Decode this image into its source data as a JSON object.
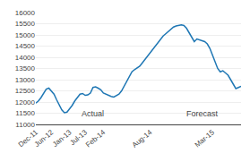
{
  "chart_data": {
    "type": "line",
    "categories": [
      "Dec-11",
      null,
      null,
      null,
      null,
      null,
      "Jun-12",
      null,
      null,
      null,
      null,
      null,
      null,
      "Jan-13",
      null,
      null,
      null,
      null,
      null,
      "Jul-13",
      null,
      null,
      null,
      null,
      null,
      null,
      "Feb-14",
      null,
      null,
      null,
      null,
      null,
      null,
      null,
      null,
      null,
      null,
      null,
      null,
      null,
      null,
      null,
      null,
      null,
      "Aug-14",
      null,
      null,
      null,
      null,
      null,
      null,
      null,
      null,
      null,
      null,
      null,
      null,
      null,
      null,
      null,
      null,
      null,
      null,
      null,
      null,
      null,
      null,
      null,
      "Mar-15",
      null,
      null,
      null,
      null,
      null,
      null,
      null,
      null,
      null,
      null,
      null
    ],
    "values": [
      11950,
      12050,
      12200,
      12400,
      12580,
      12620,
      12500,
      12350,
      12100,
      11850,
      11650,
      11520,
      11550,
      11700,
      11850,
      12050,
      12200,
      12350,
      12380,
      12300,
      12320,
      12400,
      12650,
      12680,
      12620,
      12550,
      12400,
      12350,
      12280,
      12250,
      12220,
      12280,
      12350,
      12500,
      12700,
      12900,
      13100,
      13350,
      13450,
      13520,
      13600,
      13750,
      13900,
      14050,
      14200,
      14350,
      14500,
      14650,
      14800,
      14950,
      15050,
      15150,
      15250,
      15350,
      15400,
      15430,
      15450,
      15420,
      15300,
      15100,
      14900,
      14700,
      14820,
      14780,
      14750,
      14700,
      14600,
      14400,
      14100,
      13800,
      13500,
      13350,
      13400,
      13300,
      13200,
      13000,
      12800,
      12600,
      12650,
      12700
    ],
    "ylim": [
      11000,
      16000
    ],
    "yticks": [
      11000,
      11500,
      12000,
      12500,
      13000,
      13500,
      14000,
      14500,
      15000,
      15500,
      16000
    ],
    "grid": true,
    "annotations": [
      {
        "text": "Actual",
        "x": 22,
        "y": 11200
      },
      {
        "text": "Forecast",
        "x": 64,
        "y": 11200
      }
    ]
  }
}
